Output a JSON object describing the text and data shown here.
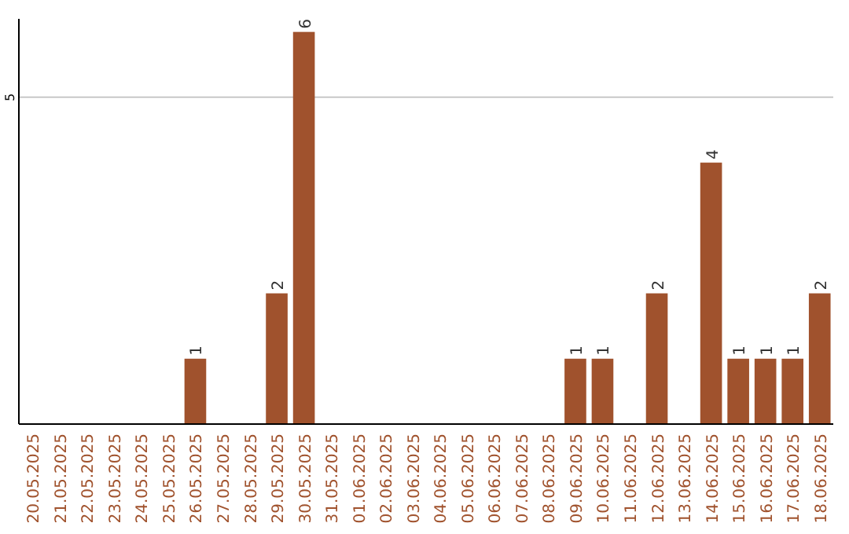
{
  "chart_data": {
    "type": "bar",
    "categories": [
      "20.05.2025",
      "21.05.2025",
      "22.05.2025",
      "23.05.2025",
      "24.05.2025",
      "25.05.2025",
      "26.05.2025",
      "27.05.2025",
      "28.05.2025",
      "29.05.2025",
      "30.05.2025",
      "31.05.2025",
      "01.06.2025",
      "02.06.2025",
      "03.06.2025",
      "04.06.2025",
      "05.06.2025",
      "06.06.2025",
      "07.06.2025",
      "08.06.2025",
      "09.06.2025",
      "10.06.2025",
      "11.06.2025",
      "12.06.2025",
      "13.06.2025",
      "14.06.2025",
      "15.06.2025",
      "16.06.2025",
      "17.06.2025",
      "18.06.2025"
    ],
    "values": [
      0,
      0,
      0,
      0,
      0,
      0,
      1,
      0,
      0,
      2,
      6,
      0,
      0,
      0,
      0,
      0,
      0,
      0,
      0,
      0,
      1,
      1,
      0,
      2,
      0,
      4,
      1,
      1,
      1,
      2
    ],
    "value_labels": [
      null,
      null,
      null,
      null,
      null,
      null,
      "1",
      null,
      null,
      "2",
      "6",
      null,
      null,
      null,
      null,
      null,
      null,
      null,
      null,
      null,
      "1",
      "1",
      null,
      "2",
      null,
      "4",
      "1",
      "1",
      "1",
      "2"
    ],
    "color": "#a0522d",
    "ylim": [
      0,
      6.2
    ],
    "yticks": [
      5
    ],
    "grid": "y"
  }
}
